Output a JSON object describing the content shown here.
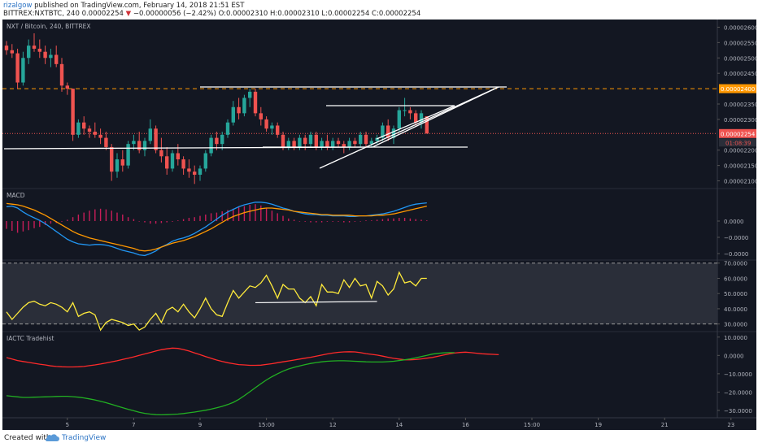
{
  "header": {
    "author": "rizalgow",
    "published": " published on TradingView.com, February 14, 2018 21:51 EST",
    "symbol": "BITTREX:NXTBTC, 240",
    "last": "0.00002254",
    "change": "−0.00000056 (−2.42%)",
    "ohlc": "O:0.00002310 H:0.00002310 L:0.00002254 C:0.00002254"
  },
  "footer": {
    "created_with": "Created with",
    "brand": "TradingView"
  },
  "colors": {
    "background": "#131722",
    "up": "#26a69a",
    "down": "#ef5350",
    "macd_line": "#2196f3",
    "signal_line": "#ff9800",
    "rsi_line": "#ffeb3b",
    "trend_lines": "#ffffff",
    "resistance_dashed": "#ff9800",
    "tradehist_red": "#ff2a2a",
    "tradehist_green": "#22b022"
  },
  "chart_data": [
    {
      "type": "candlestick",
      "title": "NXT / Bitcoin, 240, BITTREX",
      "y_ticks": [
        "0.00002600",
        "0.00002550",
        "0.00002500",
        "0.00002450",
        "0.00002350",
        "0.00002300",
        "0.00002200",
        "0.00002150",
        "0.00002100"
      ],
      "ylim": [
        2.075e-05,
        2.625e-05
      ],
      "price_labels": [
        {
          "value": 2.4e-05,
          "text": "0.00002400",
          "color": "#ff9800"
        },
        {
          "value": 2.254e-05,
          "text": "0.00002254",
          "color": "#ef5350",
          "countdown": "01:08:39"
        }
      ],
      "x_ticks": [
        "3",
        "5",
        "7",
        "9",
        "15:00",
        "12",
        "14",
        "16",
        "15:00",
        "19",
        "21",
        "23",
        "15:00"
      ],
      "x_tick_index": [
        -1,
        11,
        23,
        35,
        47,
        59,
        71,
        83,
        95,
        107,
        119,
        131,
        143
      ],
      "ohlc": [
        [
          2.54e-05,
          2.555e-05,
          2.51e-05,
          2.525e-05
        ],
        [
          2.525e-05,
          2.545e-05,
          2.5e-05,
          2.515e-05
        ],
        [
          2.515e-05,
          2.53e-05,
          2.4e-05,
          2.42e-05
        ],
        [
          2.42e-05,
          2.52e-05,
          2.41e-05,
          2.5e-05
        ],
        [
          2.5e-05,
          2.56e-05,
          2.48e-05,
          2.54e-05
        ],
        [
          2.54e-05,
          2.58e-05,
          2.52e-05,
          2.53e-05
        ],
        [
          2.53e-05,
          2.56e-05,
          2.5e-05,
          2.52e-05
        ],
        [
          2.52e-05,
          2.54e-05,
          2.48e-05,
          2.5e-05
        ],
        [
          2.5e-05,
          2.53e-05,
          2.47e-05,
          2.51e-05
        ],
        [
          2.51e-05,
          2.54e-05,
          2.47e-05,
          2.48e-05
        ],
        [
          2.48e-05,
          2.5e-05,
          2.39e-05,
          2.41e-05
        ],
        [
          2.41e-05,
          2.42e-05,
          2.38e-05,
          2.4e-05
        ],
        [
          2.4e-05,
          2.4e-05,
          2.23e-05,
          2.25e-05
        ],
        [
          2.25e-05,
          2.3e-05,
          2.24e-05,
          2.29e-05
        ],
        [
          2.29e-05,
          2.31e-05,
          2.25e-05,
          2.27e-05
        ],
        [
          2.27e-05,
          2.28e-05,
          2.24e-05,
          2.26e-05
        ],
        [
          2.26e-05,
          2.29e-05,
          2.24e-05,
          2.25e-05
        ],
        [
          2.25e-05,
          2.27e-05,
          2.22e-05,
          2.24e-05
        ],
        [
          2.24e-05,
          2.26e-05,
          2.2e-05,
          2.21e-05
        ],
        [
          2.21e-05,
          2.22e-05,
          2.1e-05,
          2.13e-05
        ],
        [
          2.13e-05,
          2.19e-05,
          2.11e-05,
          2.17e-05
        ],
        [
          2.17e-05,
          2.2e-05,
          2.13e-05,
          2.15e-05
        ],
        [
          2.15e-05,
          2.23e-05,
          2.14e-05,
          2.22e-05
        ],
        [
          2.22e-05,
          2.25e-05,
          2.2e-05,
          2.23e-05
        ],
        [
          2.23e-05,
          2.26e-05,
          2.19e-05,
          2.2e-05
        ],
        [
          2.2e-05,
          2.24e-05,
          2.18e-05,
          2.23e-05
        ],
        [
          2.23e-05,
          2.3e-05,
          2.22e-05,
          2.27e-05
        ],
        [
          2.27e-05,
          2.28e-05,
          2.19e-05,
          2.2e-05
        ],
        [
          2.2e-05,
          2.24e-05,
          2.16e-05,
          2.18e-05
        ],
        [
          2.18e-05,
          2.21e-05,
          2.12e-05,
          2.14e-05
        ],
        [
          2.14e-05,
          2.2e-05,
          2.13e-05,
          2.19e-05
        ],
        [
          2.19e-05,
          2.22e-05,
          2.15e-05,
          2.17e-05
        ],
        [
          2.17e-05,
          2.18e-05,
          2.12e-05,
          2.14e-05
        ],
        [
          2.14e-05,
          2.17e-05,
          2.11e-05,
          2.13e-05
        ],
        [
          2.13e-05,
          2.15e-05,
          2.09e-05,
          2.12e-05
        ],
        [
          2.12e-05,
          2.15e-05,
          2.1e-05,
          2.14e-05
        ],
        [
          2.14e-05,
          2.2e-05,
          2.13e-05,
          2.19e-05
        ],
        [
          2.19e-05,
          2.25e-05,
          2.18e-05,
          2.24e-05
        ],
        [
          2.24e-05,
          2.26e-05,
          2.2e-05,
          2.22e-05
        ],
        [
          2.22e-05,
          2.26e-05,
          2.2e-05,
          2.25e-05
        ],
        [
          2.25e-05,
          2.3e-05,
          2.24e-05,
          2.29e-05
        ],
        [
          2.29e-05,
          2.36e-05,
          2.28e-05,
          2.34e-05
        ],
        [
          2.34e-05,
          2.37e-05,
          2.3e-05,
          2.32e-05
        ],
        [
          2.32e-05,
          2.38e-05,
          2.31e-05,
          2.37e-05
        ],
        [
          2.37e-05,
          2.4e-05,
          2.34e-05,
          2.39e-05
        ],
        [
          2.39e-05,
          2.4e-05,
          2.31e-05,
          2.32e-05
        ],
        [
          2.32e-05,
          2.34e-05,
          2.28e-05,
          2.3e-05
        ],
        [
          2.3e-05,
          2.31e-05,
          2.26e-05,
          2.27e-05
        ],
        [
          2.27e-05,
          2.29e-05,
          2.25e-05,
          2.28e-05
        ],
        [
          2.28e-05,
          2.29e-05,
          2.24e-05,
          2.25e-05
        ],
        [
          2.25e-05,
          2.26e-05,
          2.2e-05,
          2.21e-05
        ],
        [
          2.21e-05,
          2.24e-05,
          2.2e-05,
          2.23e-05
        ],
        [
          2.23e-05,
          2.24e-05,
          2.2e-05,
          2.21e-05
        ],
        [
          2.21e-05,
          2.25e-05,
          2.2e-05,
          2.24e-05
        ],
        [
          2.24e-05,
          2.25e-05,
          2.2e-05,
          2.22e-05
        ],
        [
          2.22e-05,
          2.26e-05,
          2.21e-05,
          2.25e-05
        ],
        [
          2.25e-05,
          2.26e-05,
          2.2e-05,
          2.21e-05
        ],
        [
          2.21e-05,
          2.24e-05,
          2.2e-05,
          2.23e-05
        ],
        [
          2.23e-05,
          2.25e-05,
          2.2e-05,
          2.21e-05
        ],
        [
          2.21e-05,
          2.24e-05,
          2.2e-05,
          2.23e-05
        ],
        [
          2.23e-05,
          2.24e-05,
          2.21e-05,
          2.22e-05
        ],
        [
          2.22e-05,
          2.23e-05,
          2.19e-05,
          2.21e-05
        ],
        [
          2.21e-05,
          2.24e-05,
          2.2e-05,
          2.23e-05
        ],
        [
          2.23e-05,
          2.24e-05,
          2.21e-05,
          2.22e-05
        ],
        [
          2.22e-05,
          2.26e-05,
          2.21e-05,
          2.25e-05
        ],
        [
          2.25e-05,
          2.26e-05,
          2.21e-05,
          2.22e-05
        ],
        [
          2.22e-05,
          2.24e-05,
          2.21e-05,
          2.23e-05
        ],
        [
          2.23e-05,
          2.25e-05,
          2.22e-05,
          2.24e-05
        ],
        [
          2.24e-05,
          2.29e-05,
          2.23e-05,
          2.28e-05
        ],
        [
          2.28e-05,
          2.3e-05,
          2.23e-05,
          2.24e-05
        ],
        [
          2.24e-05,
          2.28e-05,
          2.22e-05,
          2.27e-05
        ],
        [
          2.27e-05,
          2.34e-05,
          2.26e-05,
          2.33e-05
        ],
        [
          2.33e-05,
          2.37e-05,
          2.31e-05,
          2.33e-05
        ],
        [
          2.33e-05,
          2.34e-05,
          2.3e-05,
          2.32e-05
        ],
        [
          2.32e-05,
          2.33e-05,
          2.28e-05,
          2.29e-05
        ],
        [
          2.29e-05,
          2.33e-05,
          2.27e-05,
          2.32e-05
        ],
        [
          2.31e-05,
          2.31e-05,
          2.254e-05,
          2.254e-05
        ]
      ],
      "resistance_level": 2.4e-05
    },
    {
      "type": "line",
      "title": "MACD",
      "y_ticks": [
        "0.0000",
        "−0.0000",
        "−0.0000"
      ],
      "histogram": [
        -1.2,
        -1.5,
        -1.8,
        -1.6,
        -1.4,
        -1.1,
        -0.9,
        -0.6,
        -0.4,
        -0.3,
        -0.1,
        0.2,
        0.6,
        1.0,
        1.3,
        1.6,
        1.8,
        1.9,
        1.8,
        1.6,
        1.3,
        1.0,
        0.6,
        0.3,
        0.0,
        -0.2,
        -0.4,
        -0.4,
        -0.3,
        -0.2,
        -0.1,
        0.1,
        0.3,
        0.5,
        0.6,
        0.8,
        1.0,
        1.2,
        1.3,
        1.5,
        1.7,
        1.9,
        2.1,
        2.3,
        2.5,
        2.6,
        2.4,
        2.0,
        1.6,
        1.2,
        0.8,
        0.4,
        0.2,
        0.0,
        -0.1,
        -0.2,
        -0.2,
        -0.2,
        -0.1,
        -0.1,
        -0.1,
        -0.2,
        -0.2,
        -0.1,
        0.0,
        0.1,
        0.1,
        0.2,
        0.3,
        0.4,
        0.4,
        0.5,
        0.5,
        0.4,
        0.3,
        0.2,
        0.1
      ],
      "series": [
        {
          "values": [
            2.2,
            2.3,
            2.0,
            1.4,
            0.9,
            0.5,
            0.1,
            -0.4,
            -1.0,
            -1.6,
            -2.2,
            -2.8,
            -3.2,
            -3.5,
            -3.6,
            -3.7,
            -3.6,
            -3.6,
            -3.7,
            -3.9,
            -4.2,
            -4.5,
            -4.7,
            -4.9,
            -5.2,
            -5.3,
            -5.0,
            -4.6,
            -4.0,
            -3.6,
            -3.1,
            -2.8,
            -2.6,
            -2.3,
            -1.9,
            -1.4,
            -0.9,
            -0.3,
            0.3,
            0.9,
            1.4,
            1.8,
            2.2,
            2.5,
            2.7,
            2.9,
            2.9,
            2.8,
            2.6,
            2.3,
            2.0,
            1.8,
            1.5,
            1.3,
            1.1,
            1.0,
            1.0,
            0.9,
            0.9,
            0.8,
            0.8,
            0.8,
            0.7,
            0.7,
            0.8,
            0.8,
            0.9,
            1.0,
            1.1,
            1.3,
            1.5,
            1.8,
            2.1,
            2.4,
            2.6,
            2.7,
            2.8
          ]
        },
        {
          "values": [
            2.7,
            2.6,
            2.5,
            2.3,
            2.0,
            1.7,
            1.3,
            0.9,
            0.4,
            -0.1,
            -0.6,
            -1.1,
            -1.6,
            -2.0,
            -2.3,
            -2.6,
            -2.8,
            -3.0,
            -3.2,
            -3.4,
            -3.6,
            -3.8,
            -4.0,
            -4.2,
            -4.5,
            -4.6,
            -4.5,
            -4.3,
            -4.0,
            -3.7,
            -3.4,
            -3.2,
            -3.0,
            -2.7,
            -2.4,
            -2.0,
            -1.6,
            -1.2,
            -0.7,
            -0.2,
            0.3,
            0.7,
            1.0,
            1.3,
            1.5,
            1.7,
            1.9,
            2.0,
            2.0,
            1.9,
            1.8,
            1.7,
            1.5,
            1.4,
            1.3,
            1.2,
            1.1,
            1.0,
            1.0,
            0.9,
            0.9,
            0.9,
            0.9,
            0.8,
            0.8,
            0.8,
            0.8,
            0.9,
            0.9,
            1.0,
            1.1,
            1.3,
            1.5,
            1.7,
            1.9,
            2.1,
            2.3
          ]
        }
      ],
      "ylim": [
        -6,
        5
      ]
    },
    {
      "type": "line",
      "title": "RSI",
      "y_ticks": [
        "70.0000",
        "60.0000",
        "50.0000",
        "40.0000",
        "30.0000"
      ],
      "ylim": [
        25,
        72
      ],
      "bands": [
        70,
        30
      ],
      "values": [
        38,
        33,
        37,
        41,
        44,
        45,
        43,
        42,
        44,
        43,
        41,
        38,
        44,
        35,
        37,
        38,
        36,
        26,
        31,
        33,
        32,
        31,
        29,
        30,
        26,
        28,
        33,
        37,
        31,
        39,
        41,
        38,
        43,
        38,
        34,
        40,
        47,
        40,
        36,
        35,
        44,
        52,
        47,
        51,
        55,
        54,
        57,
        62,
        55,
        47,
        56,
        53,
        53,
        47,
        44,
        48,
        42,
        56,
        51,
        51,
        50,
        59,
        54,
        60,
        55,
        56,
        47,
        58,
        55,
        49,
        53,
        64,
        57,
        58,
        55,
        60,
        60
      ],
      "x_offset": 0,
      "support_line": {
        "from_index": 45,
        "to_index": 67,
        "y": 44
      }
    },
    {
      "type": "line",
      "title": "IACTC Tradehist",
      "y_ticks": [
        "10.0000",
        "0.0000",
        "−10.0000",
        "−20.0000",
        "−30.0000"
      ],
      "ylim": [
        -34,
        13
      ],
      "series": [
        {
          "values": [
            -1.2,
            -2.0,
            -2.8,
            -3.3,
            -3.8,
            -4.3,
            -4.8,
            -5.2,
            -5.7,
            -6.0,
            -6.2,
            -6.3,
            -6.3,
            -6.2,
            -6.0,
            -5.6,
            -5.2,
            -4.7,
            -4.1,
            -3.5,
            -2.9,
            -2.2,
            -1.5,
            -0.8,
            0.0,
            0.8,
            1.6,
            2.4,
            3.1,
            3.6,
            4.0,
            3.8,
            3.2,
            2.4,
            1.4,
            0.4,
            -0.6,
            -1.6,
            -2.5,
            -3.3,
            -4.0,
            -4.5,
            -5.0,
            -5.2,
            -5.4,
            -5.4,
            -5.3,
            -4.9,
            -4.5,
            -4.0,
            -3.5,
            -3.0,
            -2.5,
            -2.0,
            -1.5,
            -1.0,
            -0.4,
            0.2,
            0.8,
            1.3,
            1.7,
            1.9,
            2.0,
            1.9,
            1.5,
            1.0,
            0.6,
            0.2,
            -0.4,
            -1.0,
            -1.6,
            -2.0,
            -2.4,
            -2.4,
            -2.2,
            -1.9,
            -1.5,
            -1.1,
            -0.5,
            0.2,
            0.8,
            1.3,
            1.6,
            1.8,
            1.5,
            1.2,
            0.9,
            0.7,
            0.6,
            0.4
          ]
        },
        {
          "values": [
            -22,
            -22.3,
            -22.6,
            -22.9,
            -22.9,
            -22.8,
            -22.7,
            -22.6,
            -22.5,
            -22.4,
            -22.3,
            -22.3,
            -22.5,
            -22.8,
            -23.2,
            -23.7,
            -24.3,
            -25.0,
            -25.8,
            -26.7,
            -27.6,
            -28.5,
            -29.4,
            -30.2,
            -31.0,
            -31.6,
            -32.0,
            -32.3,
            -32.4,
            -32.3,
            -32.2,
            -32.0,
            -31.7,
            -31.3,
            -30.9,
            -30.4,
            -29.9,
            -29.3,
            -28.6,
            -27.8,
            -26.8,
            -25.6,
            -24.0,
            -22.0,
            -19.8,
            -17.6,
            -15.4,
            -13.4,
            -11.6,
            -10.0,
            -8.6,
            -7.4,
            -6.5,
            -5.7,
            -5.0,
            -4.4,
            -3.9,
            -3.5,
            -3.2,
            -3.0,
            -2.9,
            -2.9,
            -3.0,
            -3.2,
            -3.3,
            -3.5,
            -3.6,
            -3.6,
            -3.6,
            -3.4,
            -3.2,
            -2.8,
            -2.4,
            -1.9,
            -1.3,
            -0.6,
            0.0,
            0.7,
            1.1,
            1.4,
            1.5,
            1.5
          ]
        }
      ]
    }
  ]
}
